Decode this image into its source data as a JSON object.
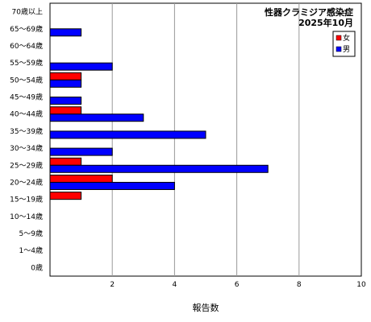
{
  "chart_data": {
    "type": "bar",
    "orientation": "horizontal",
    "title": "性器クラミジア感染症",
    "subtitle": "2025年10月",
    "xlabel": "報告数",
    "ylabel": "",
    "xlim": [
      0,
      10
    ],
    "xticks": [
      "2",
      "4",
      "6",
      "8",
      "10"
    ],
    "grid": true,
    "legend_position": "top-right",
    "categories": [
      "70歳以上",
      "65～69歳",
      "60～64歳",
      "55～59歳",
      "50～54歳",
      "45～49歳",
      "40～44歳",
      "35～39歳",
      "30～34歳",
      "25～29歳",
      "20～24歳",
      "15～19歳",
      "10～14歳",
      "5～9歳",
      "1～4歳",
      "0歳"
    ],
    "series": [
      {
        "name": "女",
        "color": "#ff0000",
        "values": [
          0,
          0,
          0,
          0,
          1,
          0,
          1,
          0,
          0,
          1,
          2,
          1,
          0,
          0,
          0,
          0
        ]
      },
      {
        "name": "男",
        "color": "#0000ff",
        "values": [
          0,
          1,
          0,
          2,
          1,
          1,
          3,
          5,
          2,
          7,
          4,
          0,
          0,
          0,
          0,
          0
        ]
      }
    ]
  }
}
